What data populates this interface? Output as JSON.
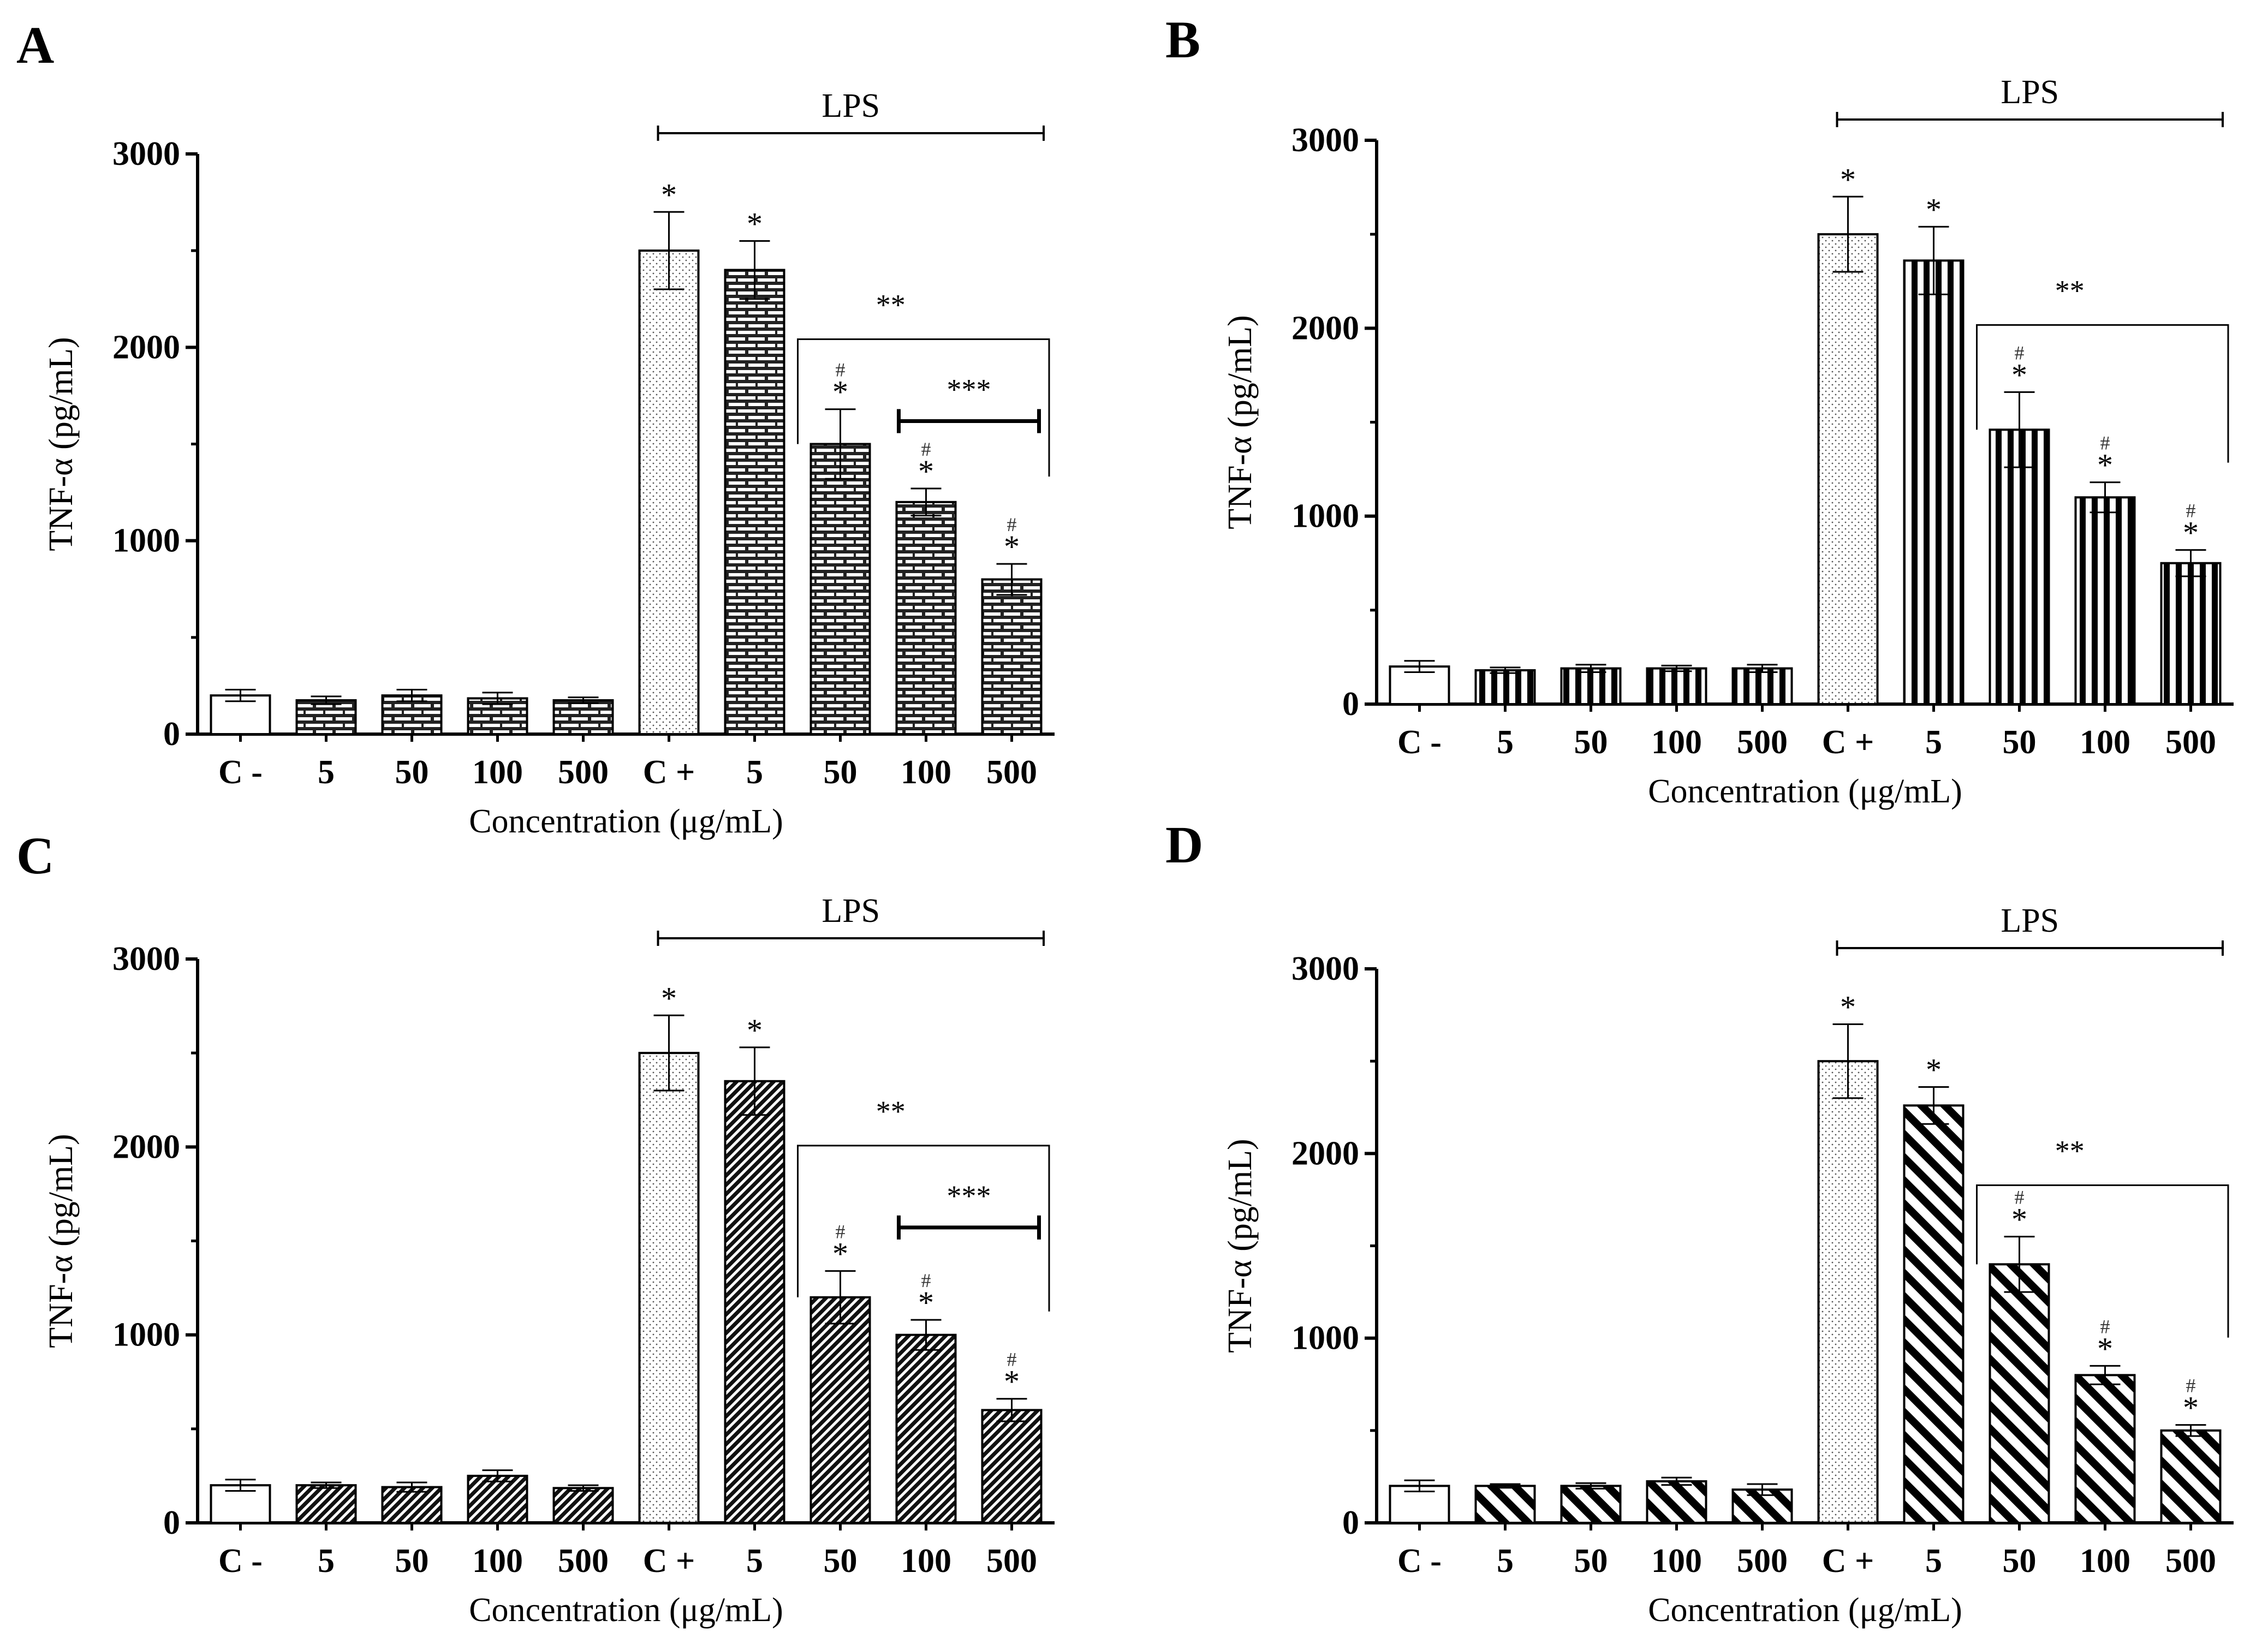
{
  "colors": {
    "ink": "#000000",
    "paper": "#ffffff"
  },
  "chart_data": [
    {
      "panel": "A",
      "type": "bar",
      "pattern": "brick",
      "categories": [
        "C -",
        "5",
        "50",
        "100",
        "500",
        "C +",
        "5",
        "50",
        "100",
        "500"
      ],
      "values": [
        200,
        175,
        200,
        185,
        175,
        2500,
        2400,
        1500,
        1200,
        800
      ],
      "errors": [
        30,
        20,
        30,
        30,
        15,
        200,
        150,
        180,
        70,
        80
      ],
      "star_labels": [
        "",
        "",
        "",
        "",
        "",
        "*",
        "*",
        "*",
        "*",
        "*"
      ],
      "hash_labels": [
        "",
        "",
        "",
        "",
        "",
        "",
        "",
        "#",
        "#",
        "#"
      ],
      "bracket_label": "LPS",
      "group_bracket_label": "**",
      "inner_bracket_label": "***",
      "xlabel": "Concentration (μg/mL)",
      "ylabel": "TNF-α (pg/mL)",
      "yticks": [
        0,
        1000,
        2000,
        3000
      ],
      "ylim": [
        0,
        3000
      ]
    },
    {
      "panel": "B",
      "type": "bar",
      "pattern": "vertical",
      "categories": [
        "C -",
        "5",
        "50",
        "100",
        "500",
        "C +",
        "5",
        "50",
        "100",
        "500"
      ],
      "values": [
        200,
        180,
        190,
        190,
        190,
        2500,
        2360,
        1460,
        1100,
        750
      ],
      "errors": [
        30,
        15,
        20,
        15,
        20,
        200,
        180,
        200,
        80,
        70
      ],
      "star_labels": [
        "",
        "",
        "",
        "",
        "",
        "*",
        "*",
        "*",
        "*",
        "*"
      ],
      "hash_labels": [
        "",
        "",
        "",
        "",
        "",
        "",
        "",
        "#",
        "#",
        "#"
      ],
      "bracket_label": "LPS",
      "group_bracket_label": "**",
      "inner_bracket_label": "",
      "xlabel": "Concentration (μg/mL)",
      "ylabel": "TNF-α (pg/mL)",
      "yticks": [
        0,
        1000,
        2000,
        3000
      ],
      "ylim": [
        0,
        3000
      ]
    },
    {
      "panel": "C",
      "type": "bar",
      "pattern": "thin-diagonal",
      "categories": [
        "C -",
        "5",
        "50",
        "100",
        "500",
        "C +",
        "5",
        "50",
        "100",
        "500"
      ],
      "values": [
        200,
        200,
        190,
        250,
        185,
        2500,
        2350,
        1200,
        1000,
        600
      ],
      "errors": [
        30,
        15,
        25,
        30,
        15,
        200,
        180,
        140,
        80,
        60
      ],
      "star_labels": [
        "",
        "",
        "",
        "",
        "",
        "*",
        "*",
        "*",
        "*",
        "*"
      ],
      "hash_labels": [
        "",
        "",
        "",
        "",
        "",
        "",
        "",
        "#",
        "#",
        "#"
      ],
      "bracket_label": "LPS",
      "group_bracket_label": "**",
      "inner_bracket_label": "***",
      "xlabel": "Concentration (μg/mL)",
      "ylabel": "TNF-α (pg/mL)",
      "yticks": [
        0,
        1000,
        2000,
        3000
      ],
      "ylim": [
        0,
        3000
      ]
    },
    {
      "panel": "D",
      "type": "bar",
      "pattern": "thick-diagonal",
      "categories": [
        "C -",
        "5",
        "50",
        "100",
        "500",
        "C +",
        "5",
        "50",
        "100",
        "500"
      ],
      "values": [
        200,
        200,
        200,
        225,
        180,
        2500,
        2260,
        1400,
        800,
        500
      ],
      "errors": [
        30,
        10,
        15,
        20,
        30,
        200,
        100,
        150,
        50,
        30
      ],
      "star_labels": [
        "",
        "",
        "",
        "",
        "",
        "*",
        "*",
        "*",
        "*",
        "*"
      ],
      "hash_labels": [
        "",
        "",
        "",
        "",
        "",
        "",
        "",
        "#",
        "#",
        "#"
      ],
      "bracket_label": "LPS",
      "group_bracket_label": "**",
      "inner_bracket_label": "",
      "xlabel": "Concentration (μg/mL)",
      "ylabel": "TNF-α (pg/mL)",
      "yticks": [
        0,
        1000,
        2000,
        3000
      ],
      "ylim": [
        0,
        3000
      ]
    }
  ]
}
